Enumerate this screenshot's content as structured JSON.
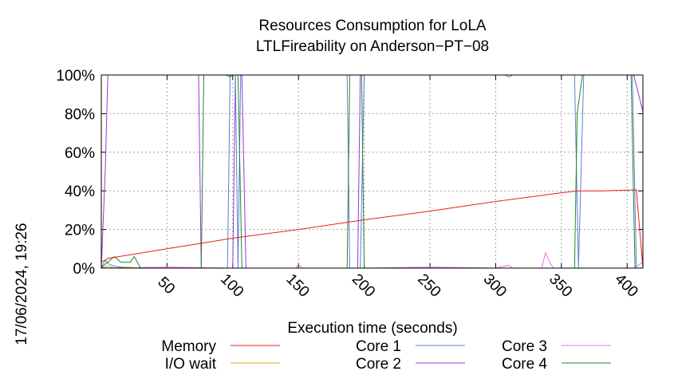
{
  "chart_data": {
    "type": "line",
    "title": "Resources Consumption for LoLA",
    "subtitle": "LTLFireability on Anderson−PT−08",
    "xlabel": "Execution time (seconds)",
    "ylabel": "",
    "side_label": "17/06/2024, 19:26",
    "xlim": [
      0,
      412
    ],
    "ylim": [
      0,
      100
    ],
    "x_ticks": [
      50,
      100,
      150,
      200,
      250,
      300,
      350,
      400
    ],
    "y_ticks": [
      0,
      20,
      40,
      60,
      80,
      100
    ],
    "y_tick_labels": [
      "0%",
      "20%",
      "40%",
      "60%",
      "80%",
      "100%"
    ],
    "grid": true,
    "legend_position": "bottom",
    "series": [
      {
        "name": "Memory",
        "color": "#e8201a",
        "points": [
          [
            0,
            3
          ],
          [
            5,
            5
          ],
          [
            50,
            10
          ],
          [
            100,
            15.5
          ],
          [
            150,
            20
          ],
          [
            200,
            25
          ],
          [
            250,
            29.5
          ],
          [
            300,
            34.5
          ],
          [
            350,
            39
          ],
          [
            363,
            40
          ],
          [
            380,
            40
          ],
          [
            407,
            40.5
          ],
          [
            412,
            0
          ]
        ]
      },
      {
        "name": "I/O wait",
        "color": "#e9a020",
        "points": [
          [
            0,
            0
          ],
          [
            5,
            1
          ],
          [
            10,
            0
          ],
          [
            20,
            0.5
          ],
          [
            30,
            0
          ],
          [
            412,
            0
          ]
        ]
      },
      {
        "name": "Core 1",
        "color": "#5b7fd1",
        "points": [
          [
            0,
            0
          ],
          [
            3,
            4
          ],
          [
            6,
            2
          ],
          [
            10,
            1
          ],
          [
            15,
            0.5
          ],
          [
            20,
            0
          ],
          [
            73,
            0
          ],
          [
            78,
            0
          ],
          [
            96,
            0
          ],
          [
            98,
            100
          ],
          [
            102,
            100
          ],
          [
            104,
            0
          ],
          [
            106,
            100
          ],
          [
            187,
            100
          ],
          [
            189,
            0
          ],
          [
            197,
            0
          ],
          [
            200,
            100
          ],
          [
            307,
            100
          ],
          [
            310,
            99
          ],
          [
            313,
            100
          ],
          [
            360,
            100
          ],
          [
            363,
            0
          ],
          [
            367,
            100
          ],
          [
            404,
            100
          ],
          [
            407,
            0
          ],
          [
            412,
            0
          ]
        ]
      },
      {
        "name": "Core 2",
        "color": "#9a34d6",
        "points": [
          [
            0,
            0
          ],
          [
            3,
            50
          ],
          [
            5,
            100
          ],
          [
            74,
            100
          ],
          [
            76,
            0
          ],
          [
            100,
            0
          ],
          [
            102,
            100
          ],
          [
            107,
            100
          ],
          [
            110,
            0
          ],
          [
            195,
            0
          ],
          [
            197,
            100
          ],
          [
            405,
            100
          ],
          [
            412,
            81
          ]
        ]
      },
      {
        "name": "Core 3",
        "color": "#e573e8",
        "points": [
          [
            0,
            0
          ],
          [
            5,
            0
          ],
          [
            50,
            0.5
          ],
          [
            100,
            0
          ],
          [
            148,
            0
          ],
          [
            150,
            2
          ],
          [
            153,
            0
          ],
          [
            200,
            0
          ],
          [
            250,
            0.5
          ],
          [
            300,
            0
          ],
          [
            310,
            1.5
          ],
          [
            313,
            0
          ],
          [
            335,
            0
          ],
          [
            338,
            8
          ],
          [
            341,
            3
          ],
          [
            344,
            0
          ],
          [
            360,
            0
          ],
          [
            405,
            0
          ],
          [
            412,
            3
          ]
        ]
      },
      {
        "name": "Core 4",
        "color": "#1e8a2c",
        "points": [
          [
            0,
            0
          ],
          [
            3,
            2
          ],
          [
            10,
            6
          ],
          [
            15,
            3
          ],
          [
            22,
            3
          ],
          [
            25,
            6
          ],
          [
            30,
            0
          ],
          [
            76,
            0
          ],
          [
            78,
            100
          ],
          [
            95,
            100
          ],
          [
            98,
            99
          ],
          [
            100,
            100
          ],
          [
            104,
            100
          ],
          [
            107,
            0
          ],
          [
            187,
            0
          ],
          [
            189,
            100
          ],
          [
            198,
            100
          ],
          [
            200,
            0
          ],
          [
            360,
            0
          ],
          [
            362,
            80
          ],
          [
            366,
            100
          ],
          [
            403,
            100
          ],
          [
            406,
            0
          ],
          [
            412,
            0
          ]
        ]
      }
    ]
  }
}
